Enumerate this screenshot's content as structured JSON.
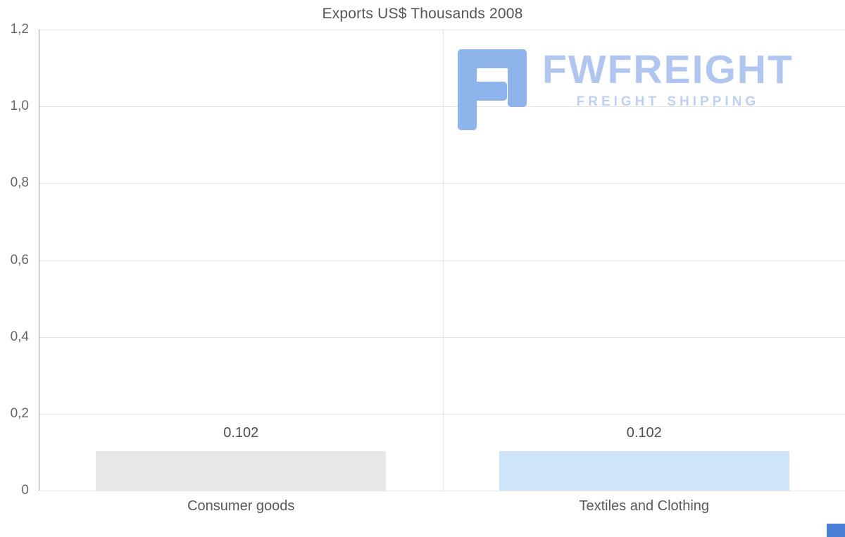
{
  "title": "Exports US$ Thousands 2008",
  "watermark": {
    "brand": "FWFREIGHT",
    "tagline": "FREIGHT SHIPPING"
  },
  "chart_data": {
    "type": "bar",
    "title": "Exports US$ Thousands 2008",
    "categories": [
      "Consumer goods",
      "Textiles and Clothing"
    ],
    "values": [
      0.102,
      0.102
    ],
    "data_labels": [
      "0.102",
      "0.102"
    ],
    "bar_colors": [
      "#e8e8e8",
      "#cde4fa"
    ],
    "xlabel": "",
    "ylabel": "",
    "ylim": [
      0,
      1.2
    ],
    "yticks": [
      0,
      0.2,
      0.4,
      0.6,
      0.8,
      1.0,
      1.2
    ],
    "ytick_labels": [
      "0",
      "0,2",
      "0,4",
      "0,6",
      "0,8",
      "1,0",
      "1,2"
    ],
    "grid": true,
    "legend": false
  },
  "colors": {
    "bar_consumer_goods": "#e8e8e8",
    "bar_textiles_clothing": "#cde4fa",
    "gridline": "#e4e4e4",
    "axis_line": "#9b9b9b",
    "text": "#555555",
    "watermark_icon": "#8fb4ec",
    "watermark_text": "#b0c6f1",
    "corner_accent": "#4b7fd6"
  }
}
